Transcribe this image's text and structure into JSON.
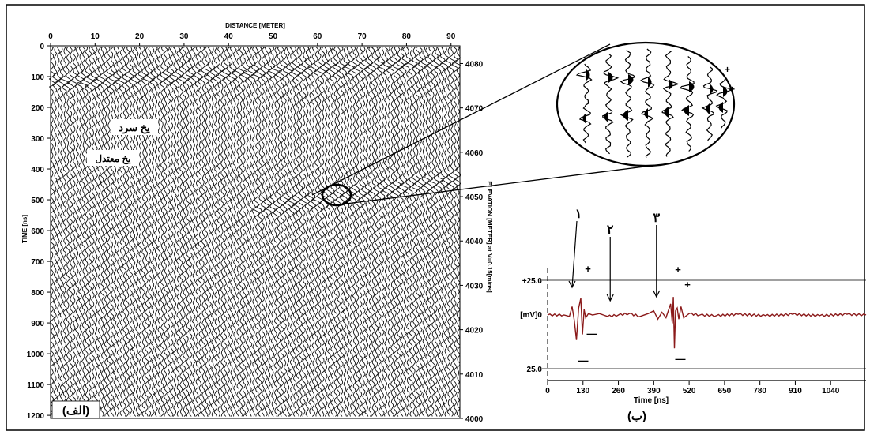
{
  "panel_a": {
    "label": "(الف)",
    "x_title": "DISTANCE [METER]",
    "y_title": "TIME [ns]",
    "y2_title": "ELEVATION [METER] at V=0.15[m/ns]",
    "x_ticks": [
      "0",
      "10",
      "20",
      "30",
      "40",
      "50",
      "60",
      "70",
      "80",
      "90"
    ],
    "y_ticks": [
      "0",
      "100",
      "200",
      "300",
      "400",
      "500",
      "600",
      "700",
      "800",
      "900",
      "1000",
      "1100",
      "1200"
    ],
    "y2_ticks": [
      "4080",
      "4070",
      "4060",
      "4050",
      "4040",
      "4030",
      "4020",
      "4010",
      "4000"
    ],
    "annotations": {
      "cold_ice": "یخ سرد",
      "temperate_ice": "یخ معتدل"
    },
    "zoom_plus_1": "+",
    "zoom_plus_2": "+"
  },
  "chart_data": [
    {
      "type": "scatter",
      "title": "",
      "xlabel": "DISTANCE [METER]",
      "ylabel": "TIME [ns]",
      "y2label": "ELEVATION [METER] at V=0.15[m/ns]",
      "xlim": [
        0,
        92
      ],
      "ylim": [
        0,
        1210
      ],
      "y_inverted": true,
      "y2lim": [
        4084,
        4000
      ],
      "note": "GPR radargram (wiggle traces)",
      "series": [
        {
          "name": "یخ سرد",
          "x": [
            0,
            92
          ],
          "y": [
            120,
            55
          ]
        },
        {
          "name": "یخ معتدل",
          "x": [
            46,
            92
          ],
          "y": [
            530,
            430
          ]
        }
      ]
    },
    {
      "type": "line",
      "title": "",
      "xlabel": "Time [ns]",
      "ylabel": "[mV]0",
      "xlim": [
        0,
        1170
      ],
      "ylim": [
        -25,
        25
      ],
      "x_ticks": [
        "0",
        "130",
        "260",
        "390",
        "520",
        "650",
        "780",
        "910",
        "1040"
      ],
      "y_ticks": [
        "+25.0",
        "[mV]0",
        "25.0"
      ],
      "line_color": "#8b1a1a",
      "series": [
        {
          "name": "",
          "x": [
            0,
            60,
            80,
            90,
            98,
            106,
            114,
            122,
            128,
            134,
            140,
            150,
            165,
            190,
            220,
            260,
            300,
            340,
            370,
            390,
            405,
            420,
            435,
            445,
            452,
            458,
            462,
            466,
            470,
            476,
            482,
            490,
            500,
            520,
            560,
            620,
            700,
            800,
            900,
            1000,
            1100,
            1170
          ],
          "y": [
            0,
            0,
            -1,
            6,
            -4,
            -18,
            5,
            12,
            -14,
            4,
            -2,
            1,
            0,
            1,
            -1,
            0,
            1,
            -1,
            1,
            3,
            -3,
            2,
            -2,
            4,
            8,
            -6,
            13,
            -24,
            3,
            5,
            -3,
            6,
            -2,
            1,
            0,
            -0.5,
            0.5,
            -0.5,
            0.5,
            -0.5,
            0.5,
            0
          ]
        }
      ],
      "annotations": [
        {
          "text": "۱",
          "x": 90
        },
        {
          "text": "۲",
          "x": 230
        },
        {
          "text": "۳",
          "x": 400
        }
      ],
      "peak_signs": [
        "+",
        "-",
        "-",
        "+",
        "-",
        "+"
      ],
      "panel_label": "(ب)"
    }
  ]
}
